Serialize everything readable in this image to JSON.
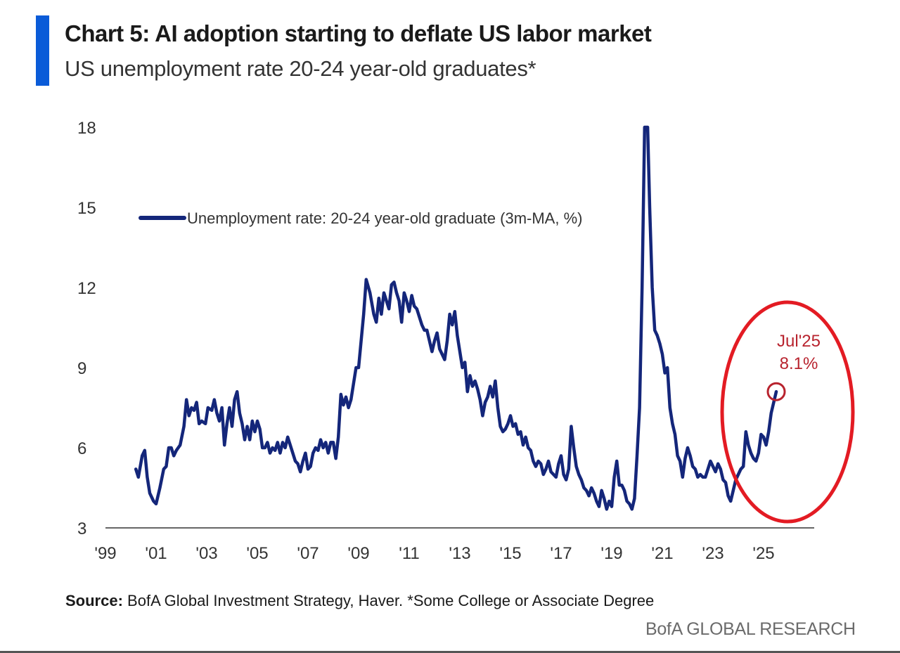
{
  "header": {
    "title": "Chart 5: AI adoption starting to deflate US labor market",
    "subtitle": "US unemployment rate 20-24 year-old graduates*"
  },
  "footer": {
    "source_label": "Source:",
    "source_text": "BofA Global Investment Strategy, Haver. *Some College or Associate Degree",
    "brand": "BofA GLOBAL RESEARCH"
  },
  "chart_data": {
    "type": "line",
    "title": "Chart 5: AI adoption starting to deflate US labor market",
    "subtitle": "US unemployment rate 20-24 year-old graduates*",
    "xlabel": "",
    "ylabel": "",
    "xlim": [
      1999,
      2027
    ],
    "ylim": [
      3,
      18
    ],
    "yticks": [
      3,
      6,
      9,
      12,
      15,
      18
    ],
    "xticks": [
      {
        "value": 1999,
        "label": "'99"
      },
      {
        "value": 2001,
        "label": "'01"
      },
      {
        "value": 2003,
        "label": "'03"
      },
      {
        "value": 2005,
        "label": "'05"
      },
      {
        "value": 2007,
        "label": "'07"
      },
      {
        "value": 2009,
        "label": "'09"
      },
      {
        "value": 2011,
        "label": "'11"
      },
      {
        "value": 2013,
        "label": "'13"
      },
      {
        "value": 2015,
        "label": "'15"
      },
      {
        "value": 2017,
        "label": "'17"
      },
      {
        "value": 2019,
        "label": "'19"
      },
      {
        "value": 2021,
        "label": "'21"
      },
      {
        "value": 2023,
        "label": "'23"
      },
      {
        "value": 2025,
        "label": "'25"
      }
    ],
    "grid": false,
    "legend": "top-left",
    "colors": {
      "line": "#14267a",
      "annotation": "#b8232e",
      "highlight": "#e31b23",
      "axis": "#333333"
    },
    "series": [
      {
        "name": "Unemployment rate: 20-24 year-old graduate (3m-MA, %)",
        "points": [
          [
            2000.2,
            5.2
          ],
          [
            2000.3,
            4.9
          ],
          [
            2000.45,
            5.7
          ],
          [
            2000.55,
            5.9
          ],
          [
            2000.65,
            4.9
          ],
          [
            2000.75,
            4.3
          ],
          [
            2000.9,
            4.0
          ],
          [
            2001.0,
            3.9
          ],
          [
            2001.15,
            4.5
          ],
          [
            2001.3,
            5.2
          ],
          [
            2001.4,
            5.3
          ],
          [
            2001.5,
            6.0
          ],
          [
            2001.6,
            6.0
          ],
          [
            2001.7,
            5.7
          ],
          [
            2001.8,
            5.9
          ],
          [
            2001.95,
            6.1
          ],
          [
            2002.1,
            6.8
          ],
          [
            2002.2,
            7.8
          ],
          [
            2002.3,
            7.2
          ],
          [
            2002.4,
            7.5
          ],
          [
            2002.5,
            7.4
          ],
          [
            2002.6,
            7.7
          ],
          [
            2002.7,
            6.9
          ],
          [
            2002.8,
            7.0
          ],
          [
            2002.95,
            6.9
          ],
          [
            2003.05,
            7.5
          ],
          [
            2003.2,
            7.4
          ],
          [
            2003.3,
            7.8
          ],
          [
            2003.4,
            7.3
          ],
          [
            2003.5,
            7.0
          ],
          [
            2003.6,
            7.5
          ],
          [
            2003.7,
            6.1
          ],
          [
            2003.8,
            6.9
          ],
          [
            2003.9,
            7.5
          ],
          [
            2004.0,
            6.8
          ],
          [
            2004.1,
            7.8
          ],
          [
            2004.2,
            8.1
          ],
          [
            2004.3,
            7.3
          ],
          [
            2004.4,
            6.9
          ],
          [
            2004.5,
            6.3
          ],
          [
            2004.6,
            6.8
          ],
          [
            2004.7,
            6.3
          ],
          [
            2004.8,
            7.0
          ],
          [
            2004.9,
            6.6
          ],
          [
            2005.0,
            7.0
          ],
          [
            2005.1,
            6.7
          ],
          [
            2005.2,
            6.0
          ],
          [
            2005.3,
            6.0
          ],
          [
            2005.4,
            6.2
          ],
          [
            2005.5,
            5.8
          ],
          [
            2005.6,
            6.0
          ],
          [
            2005.7,
            5.9
          ],
          [
            2005.8,
            6.2
          ],
          [
            2005.9,
            5.8
          ],
          [
            2006.0,
            6.2
          ],
          [
            2006.1,
            6.0
          ],
          [
            2006.2,
            6.4
          ],
          [
            2006.3,
            6.1
          ],
          [
            2006.4,
            5.8
          ],
          [
            2006.5,
            5.5
          ],
          [
            2006.6,
            5.4
          ],
          [
            2006.7,
            5.1
          ],
          [
            2006.8,
            5.5
          ],
          [
            2006.9,
            5.8
          ],
          [
            2007.0,
            5.2
          ],
          [
            2007.1,
            5.3
          ],
          [
            2007.2,
            5.8
          ],
          [
            2007.3,
            6.0
          ],
          [
            2007.4,
            5.9
          ],
          [
            2007.5,
            6.3
          ],
          [
            2007.6,
            6.0
          ],
          [
            2007.7,
            6.2
          ],
          [
            2007.8,
            5.8
          ],
          [
            2007.9,
            6.2
          ],
          [
            2008.0,
            6.2
          ],
          [
            2008.1,
            5.6
          ],
          [
            2008.2,
            6.4
          ],
          [
            2008.3,
            8.0
          ],
          [
            2008.4,
            7.6
          ],
          [
            2008.5,
            7.9
          ],
          [
            2008.6,
            7.5
          ],
          [
            2008.7,
            7.8
          ],
          [
            2008.8,
            8.4
          ],
          [
            2008.9,
            9.0
          ],
          [
            2009.0,
            9.0
          ],
          [
            2009.1,
            10.0
          ],
          [
            2009.2,
            11.0
          ],
          [
            2009.3,
            12.3
          ],
          [
            2009.45,
            11.8
          ],
          [
            2009.6,
            11.0
          ],
          [
            2009.7,
            10.7
          ],
          [
            2009.8,
            11.6
          ],
          [
            2009.9,
            11.0
          ],
          [
            2010.0,
            11.8
          ],
          [
            2010.1,
            11.5
          ],
          [
            2010.2,
            11.2
          ],
          [
            2010.3,
            12.1
          ],
          [
            2010.4,
            12.2
          ],
          [
            2010.5,
            11.8
          ],
          [
            2010.6,
            11.5
          ],
          [
            2010.7,
            10.7
          ],
          [
            2010.8,
            11.8
          ],
          [
            2010.9,
            11.5
          ],
          [
            2011.0,
            11.1
          ],
          [
            2011.1,
            11.7
          ],
          [
            2011.2,
            11.3
          ],
          [
            2011.3,
            11.2
          ],
          [
            2011.4,
            10.9
          ],
          [
            2011.5,
            10.6
          ],
          [
            2011.6,
            10.4
          ],
          [
            2011.7,
            10.4
          ],
          [
            2011.8,
            10.0
          ],
          [
            2011.9,
            9.6
          ],
          [
            2012.0,
            10.0
          ],
          [
            2012.1,
            10.3
          ],
          [
            2012.2,
            9.7
          ],
          [
            2012.3,
            9.5
          ],
          [
            2012.4,
            9.3
          ],
          [
            2012.5,
            10.0
          ],
          [
            2012.6,
            11.0
          ],
          [
            2012.7,
            10.6
          ],
          [
            2012.8,
            11.1
          ],
          [
            2012.9,
            10.2
          ],
          [
            2013.0,
            9.6
          ],
          [
            2013.1,
            9.0
          ],
          [
            2013.2,
            9.2
          ],
          [
            2013.3,
            8.1
          ],
          [
            2013.4,
            8.7
          ],
          [
            2013.5,
            8.3
          ],
          [
            2013.6,
            8.5
          ],
          [
            2013.7,
            8.2
          ],
          [
            2013.8,
            7.8
          ],
          [
            2013.9,
            7.2
          ],
          [
            2014.0,
            7.7
          ],
          [
            2014.1,
            7.9
          ],
          [
            2014.2,
            8.3
          ],
          [
            2014.3,
            7.9
          ],
          [
            2014.4,
            8.5
          ],
          [
            2014.5,
            7.5
          ],
          [
            2014.6,
            6.8
          ],
          [
            2014.7,
            6.6
          ],
          [
            2014.8,
            6.7
          ],
          [
            2014.9,
            6.9
          ],
          [
            2015.0,
            7.2
          ],
          [
            2015.1,
            6.8
          ],
          [
            2015.2,
            6.9
          ],
          [
            2015.3,
            6.5
          ],
          [
            2015.4,
            6.6
          ],
          [
            2015.5,
            6.1
          ],
          [
            2015.6,
            6.4
          ],
          [
            2015.7,
            6.0
          ],
          [
            2015.8,
            5.9
          ],
          [
            2015.9,
            5.5
          ],
          [
            2016.0,
            5.3
          ],
          [
            2016.1,
            5.5
          ],
          [
            2016.2,
            5.4
          ],
          [
            2016.3,
            5.0
          ],
          [
            2016.4,
            5.2
          ],
          [
            2016.5,
            5.5
          ],
          [
            2016.6,
            5.1
          ],
          [
            2016.7,
            5.0
          ],
          [
            2016.8,
            4.9
          ],
          [
            2016.9,
            5.4
          ],
          [
            2017.0,
            5.7
          ],
          [
            2017.1,
            5.0
          ],
          [
            2017.2,
            4.8
          ],
          [
            2017.3,
            5.2
          ],
          [
            2017.4,
            6.8
          ],
          [
            2017.5,
            6.0
          ],
          [
            2017.6,
            5.3
          ],
          [
            2017.7,
            5.0
          ],
          [
            2017.8,
            4.8
          ],
          [
            2017.9,
            4.5
          ],
          [
            2018.0,
            4.4
          ],
          [
            2018.1,
            4.2
          ],
          [
            2018.2,
            4.5
          ],
          [
            2018.3,
            4.3
          ],
          [
            2018.4,
            4.0
          ],
          [
            2018.5,
            3.8
          ],
          [
            2018.6,
            4.4
          ],
          [
            2018.7,
            4.1
          ],
          [
            2018.8,
            3.7
          ],
          [
            2018.9,
            4.0
          ],
          [
            2019.0,
            3.8
          ],
          [
            2019.1,
            4.9
          ],
          [
            2019.2,
            5.5
          ],
          [
            2019.3,
            4.6
          ],
          [
            2019.4,
            4.6
          ],
          [
            2019.5,
            4.4
          ],
          [
            2019.6,
            4.0
          ],
          [
            2019.7,
            3.9
          ],
          [
            2019.8,
            3.7
          ],
          [
            2019.9,
            4.1
          ],
          [
            2020.0,
            5.7
          ],
          [
            2020.1,
            7.5
          ],
          [
            2020.2,
            12.0
          ],
          [
            2020.3,
            18.0
          ],
          [
            2020.42,
            18.0
          ],
          [
            2020.5,
            15.0
          ],
          [
            2020.6,
            12.0
          ],
          [
            2020.7,
            10.4
          ],
          [
            2020.8,
            10.2
          ],
          [
            2020.9,
            9.9
          ],
          [
            2021.0,
            9.5
          ],
          [
            2021.1,
            8.8
          ],
          [
            2021.2,
            9.0
          ],
          [
            2021.3,
            7.5
          ],
          [
            2021.4,
            6.9
          ],
          [
            2021.5,
            6.5
          ],
          [
            2021.6,
            5.7
          ],
          [
            2021.7,
            5.5
          ],
          [
            2021.8,
            4.9
          ],
          [
            2021.9,
            5.6
          ],
          [
            2022.0,
            6.0
          ],
          [
            2022.1,
            5.7
          ],
          [
            2022.2,
            5.3
          ],
          [
            2022.3,
            5.2
          ],
          [
            2022.4,
            4.9
          ],
          [
            2022.5,
            5.0
          ],
          [
            2022.6,
            4.9
          ],
          [
            2022.7,
            4.9
          ],
          [
            2022.8,
            5.2
          ],
          [
            2022.9,
            5.5
          ],
          [
            2023.0,
            5.3
          ],
          [
            2023.1,
            5.1
          ],
          [
            2023.2,
            5.4
          ],
          [
            2023.3,
            5.2
          ],
          [
            2023.4,
            4.8
          ],
          [
            2023.5,
            4.7
          ],
          [
            2023.6,
            4.2
          ],
          [
            2023.7,
            4.0
          ],
          [
            2023.8,
            4.4
          ],
          [
            2023.9,
            4.8
          ],
          [
            2024.0,
            5.0
          ],
          [
            2024.1,
            5.2
          ],
          [
            2024.2,
            5.3
          ],
          [
            2024.3,
            6.6
          ],
          [
            2024.4,
            6.1
          ],
          [
            2024.5,
            5.8
          ],
          [
            2024.6,
            5.6
          ],
          [
            2024.7,
            5.5
          ],
          [
            2024.8,
            5.8
          ],
          [
            2024.9,
            6.5
          ],
          [
            2025.0,
            6.4
          ],
          [
            2025.1,
            6.1
          ],
          [
            2025.2,
            6.6
          ],
          [
            2025.3,
            7.3
          ],
          [
            2025.4,
            7.7
          ],
          [
            2025.5,
            8.1
          ]
        ]
      }
    ],
    "annotations": [
      {
        "label": "Jul'25",
        "value_label": "8.1%",
        "x": 2025.5,
        "y": 8.1
      }
    ]
  }
}
